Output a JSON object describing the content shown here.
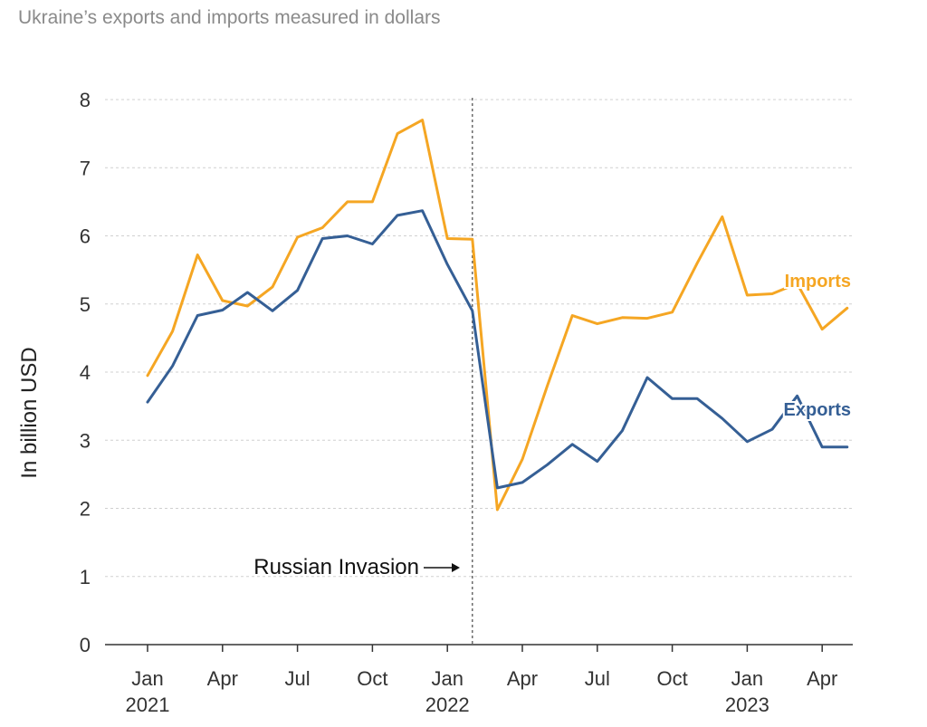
{
  "title": "Ukraine’s exports and imports measured in dollars",
  "chart_data": {
    "type": "line",
    "title": "Ukraine’s exports and imports measured in dollars",
    "ylabel": "In billion USD",
    "xlabel": "",
    "ylim": [
      0,
      8
    ],
    "yticks": [
      "0",
      "1",
      "2",
      "3",
      "4",
      "5",
      "6",
      "7",
      "8"
    ],
    "grid": true,
    "x": [
      "2021-01",
      "2021-02",
      "2021-03",
      "2021-04",
      "2021-05",
      "2021-06",
      "2021-07",
      "2021-08",
      "2021-09",
      "2021-10",
      "2021-11",
      "2021-12",
      "2022-01",
      "2022-02",
      "2022-03",
      "2022-04",
      "2022-05",
      "2022-06",
      "2022-07",
      "2022-08",
      "2022-09",
      "2022-10",
      "2022-11",
      "2022-12",
      "2023-01",
      "2023-02",
      "2023-03",
      "2023-04",
      "2023-05"
    ],
    "xticks": [
      {
        "month": "2021-01",
        "label": "Jan",
        "year": "2021"
      },
      {
        "month": "2021-04",
        "label": "Apr",
        "year": ""
      },
      {
        "month": "2021-07",
        "label": "Jul",
        "year": ""
      },
      {
        "month": "2021-10",
        "label": "Oct",
        "year": ""
      },
      {
        "month": "2022-01",
        "label": "Jan",
        "year": "2022"
      },
      {
        "month": "2022-04",
        "label": "Apr",
        "year": ""
      },
      {
        "month": "2022-07",
        "label": "Jul",
        "year": ""
      },
      {
        "month": "2022-10",
        "label": "Oct",
        "year": ""
      },
      {
        "month": "2023-01",
        "label": "Jan",
        "year": "2023"
      },
      {
        "month": "2023-04",
        "label": "Apr",
        "year": ""
      }
    ],
    "series": [
      {
        "name": "Imports",
        "color": "#f5a623",
        "values": [
          3.95,
          4.6,
          5.72,
          5.05,
          4.97,
          5.25,
          5.98,
          6.12,
          6.5,
          6.5,
          7.5,
          7.7,
          5.96,
          5.95,
          1.98,
          2.72,
          3.8,
          4.83,
          4.71,
          4.8,
          4.79,
          4.88,
          5.6,
          6.28,
          5.13,
          5.15,
          5.3,
          4.63,
          4.94
        ]
      },
      {
        "name": "Exports",
        "color": "#355f95",
        "values": [
          3.56,
          4.09,
          4.83,
          4.91,
          5.17,
          4.9,
          5.2,
          5.96,
          6.0,
          5.88,
          6.3,
          6.37,
          5.58,
          4.9,
          2.3,
          2.38,
          2.64,
          2.94,
          2.69,
          3.14,
          3.92,
          3.61,
          3.61,
          3.32,
          2.98,
          3.16,
          3.65,
          2.9,
          2.9
        ]
      }
    ],
    "annotations": [
      {
        "text": "Russian Invasion",
        "month": "2022-02",
        "style": "dotted-vertical-line"
      }
    ]
  }
}
